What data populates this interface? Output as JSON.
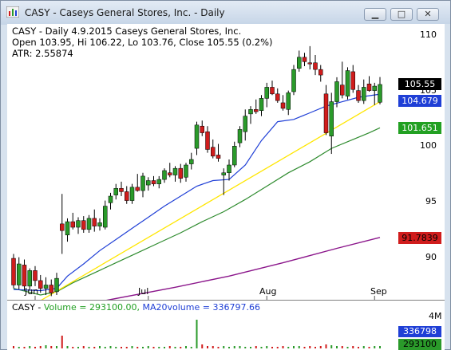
{
  "window": {
    "title": "CASY - Caseys General Stores, Inc. - Daily",
    "buttons": {
      "minimize": "▁",
      "maximize": "□",
      "close": "✕"
    }
  },
  "header": {
    "line1": "CASY - Daily 4.9.2015  Caseys General Stores, Inc.",
    "line2": "Open 103.95, Hi 106.22, Lo 103.76, Close 105.55 (0.2%)",
    "line3": " ATR: 2.55874"
  },
  "colors": {
    "up": "#2a9a2a",
    "down": "#d01c1c",
    "ma20": "#1f3fd6",
    "ma50": "#2e8b2e",
    "ma200": "#8b168b",
    "trend": "#ffe600"
  },
  "chart_data": {
    "type": "candlestick",
    "symbol": "CASY",
    "ylim": [
      86.1,
      111.0
    ],
    "y_ticks": [
      90,
      95,
      100,
      105,
      110
    ],
    "x_labels": [
      "Jun",
      "Jul",
      "Aug",
      "Sep"
    ],
    "candles": [
      {
        "o": 89.9,
        "h": 90.3,
        "l": 87.2,
        "c": 87.5
      },
      {
        "o": 87.5,
        "h": 90.0,
        "l": 87.1,
        "c": 89.4
      },
      {
        "o": 89.3,
        "h": 89.8,
        "l": 87.0,
        "c": 87.4
      },
      {
        "o": 87.4,
        "h": 89.0,
        "l": 87.0,
        "c": 88.8
      },
      {
        "o": 88.8,
        "h": 89.2,
        "l": 87.4,
        "c": 87.9
      },
      {
        "o": 87.9,
        "h": 88.4,
        "l": 86.8,
        "c": 87.2
      },
      {
        "o": 87.2,
        "h": 88.2,
        "l": 86.6,
        "c": 87.5
      },
      {
        "o": 87.5,
        "h": 88.0,
        "l": 86.5,
        "c": 86.8
      },
      {
        "o": 86.9,
        "h": 88.6,
        "l": 86.6,
        "c": 88.1
      },
      {
        "o": 93.0,
        "h": 95.7,
        "l": 90.3,
        "c": 92.4
      },
      {
        "o": 92.0,
        "h": 93.5,
        "l": 91.4,
        "c": 93.2
      },
      {
        "o": 93.2,
        "h": 94.0,
        "l": 92.5,
        "c": 92.7
      },
      {
        "o": 92.7,
        "h": 93.6,
        "l": 92.1,
        "c": 93.3
      },
      {
        "o": 93.3,
        "h": 93.7,
        "l": 92.2,
        "c": 92.5
      },
      {
        "o": 92.5,
        "h": 93.8,
        "l": 92.2,
        "c": 93.5
      },
      {
        "o": 93.5,
        "h": 94.3,
        "l": 92.3,
        "c": 92.8
      },
      {
        "o": 92.8,
        "h": 93.5,
        "l": 92.4,
        "c": 93.1
      },
      {
        "o": 92.7,
        "h": 95.1,
        "l": 92.5,
        "c": 94.6
      },
      {
        "o": 94.9,
        "h": 95.8,
        "l": 94.3,
        "c": 95.5
      },
      {
        "o": 95.6,
        "h": 96.6,
        "l": 95.2,
        "c": 96.2
      },
      {
        "o": 96.2,
        "h": 96.8,
        "l": 95.5,
        "c": 95.9
      },
      {
        "o": 95.9,
        "h": 96.4,
        "l": 94.8,
        "c": 95.1
      },
      {
        "o": 95.1,
        "h": 96.6,
        "l": 94.8,
        "c": 96.3
      },
      {
        "o": 96.3,
        "h": 97.5,
        "l": 95.9,
        "c": 96.0
      },
      {
        "o": 96.0,
        "h": 97.6,
        "l": 95.4,
        "c": 97.3
      },
      {
        "o": 96.5,
        "h": 97.2,
        "l": 96.0,
        "c": 96.9
      },
      {
        "o": 96.9,
        "h": 97.3,
        "l": 96.4,
        "c": 96.6
      },
      {
        "o": 96.6,
        "h": 97.3,
        "l": 96.2,
        "c": 97.0
      },
      {
        "o": 97.0,
        "h": 98.0,
        "l": 96.7,
        "c": 97.8
      },
      {
        "o": 97.6,
        "h": 98.5,
        "l": 97.2,
        "c": 97.4
      },
      {
        "o": 97.4,
        "h": 98.2,
        "l": 96.8,
        "c": 98.0
      },
      {
        "o": 98.0,
        "h": 98.4,
        "l": 96.7,
        "c": 97.1
      },
      {
        "o": 97.2,
        "h": 98.5,
        "l": 96.8,
        "c": 98.3
      },
      {
        "o": 98.4,
        "h": 99.4,
        "l": 97.9,
        "c": 98.8
      },
      {
        "o": 99.8,
        "h": 102.2,
        "l": 99.2,
        "c": 101.9
      },
      {
        "o": 101.8,
        "h": 102.3,
        "l": 100.9,
        "c": 101.2
      },
      {
        "o": 101.3,
        "h": 101.8,
        "l": 99.4,
        "c": 99.7
      },
      {
        "o": 99.9,
        "h": 100.6,
        "l": 98.9,
        "c": 99.1
      },
      {
        "o": 99.2,
        "h": 100.2,
        "l": 98.6,
        "c": 98.9
      },
      {
        "o": 97.4,
        "h": 98.0,
        "l": 95.6,
        "c": 97.6
      },
      {
        "o": 97.6,
        "h": 98.8,
        "l": 96.9,
        "c": 98.3
      },
      {
        "o": 98.3,
        "h": 100.4,
        "l": 98.1,
        "c": 100.0
      },
      {
        "o": 100.3,
        "h": 101.8,
        "l": 99.9,
        "c": 101.5
      },
      {
        "o": 101.3,
        "h": 103.3,
        "l": 100.5,
        "c": 102.7
      },
      {
        "o": 102.9,
        "h": 103.6,
        "l": 102.0,
        "c": 103.3
      },
      {
        "o": 103.3,
        "h": 104.2,
        "l": 102.9,
        "c": 103.1
      },
      {
        "o": 103.2,
        "h": 104.6,
        "l": 102.7,
        "c": 104.3
      },
      {
        "o": 104.3,
        "h": 105.7,
        "l": 103.5,
        "c": 105.3
      },
      {
        "o": 105.3,
        "h": 105.9,
        "l": 104.6,
        "c": 104.7
      },
      {
        "o": 104.7,
        "h": 105.2,
        "l": 103.9,
        "c": 104.1
      },
      {
        "o": 103.9,
        "h": 104.6,
        "l": 103.2,
        "c": 103.4
      },
      {
        "o": 103.3,
        "h": 105.0,
        "l": 102.8,
        "c": 104.8
      },
      {
        "o": 104.9,
        "h": 107.3,
        "l": 104.6,
        "c": 106.9
      },
      {
        "o": 107.0,
        "h": 108.6,
        "l": 106.7,
        "c": 108.0
      },
      {
        "o": 108.0,
        "h": 108.4,
        "l": 107.2,
        "c": 107.6
      },
      {
        "o": 107.5,
        "h": 109.0,
        "l": 106.9,
        "c": 107.4
      },
      {
        "o": 107.5,
        "h": 108.2,
        "l": 106.4,
        "c": 106.9
      },
      {
        "o": 106.9,
        "h": 107.3,
        "l": 105.8,
        "c": 106.4
      },
      {
        "o": 104.7,
        "h": 105.5,
        "l": 101.0,
        "c": 101.2
      },
      {
        "o": 100.9,
        "h": 104.8,
        "l": 99.3,
        "c": 104.0
      },
      {
        "o": 104.0,
        "h": 106.2,
        "l": 103.5,
        "c": 105.8
      },
      {
        "o": 105.5,
        "h": 107.6,
        "l": 104.3,
        "c": 104.6
      },
      {
        "o": 104.5,
        "h": 107.1,
        "l": 104.2,
        "c": 106.8
      },
      {
        "o": 106.7,
        "h": 107.3,
        "l": 104.8,
        "c": 105.1
      },
      {
        "o": 105.0,
        "h": 105.5,
        "l": 103.9,
        "c": 104.1
      },
      {
        "o": 104.1,
        "h": 106.0,
        "l": 103.8,
        "c": 105.3
      },
      {
        "o": 105.6,
        "h": 106.3,
        "l": 104.9,
        "c": 105.0
      },
      {
        "o": 105.0,
        "h": 105.7,
        "l": 103.7,
        "c": 105.4
      },
      {
        "o": 103.95,
        "h": 106.22,
        "l": 103.76,
        "c": 105.55
      }
    ],
    "lines": {
      "ma20": [
        [
          0,
          87.1
        ],
        [
          5,
          87.0
        ],
        [
          8,
          87.2
        ],
        [
          10,
          88.3
        ],
        [
          13,
          89.4
        ],
        [
          16,
          90.6
        ],
        [
          19,
          91.6
        ],
        [
          22,
          92.6
        ],
        [
          25,
          93.6
        ],
        [
          28,
          94.6
        ],
        [
          31,
          95.5
        ],
        [
          34,
          96.4
        ],
        [
          37,
          96.9
        ],
        [
          40,
          97.0
        ],
        [
          43,
          98.3
        ],
        [
          46,
          100.5
        ],
        [
          49,
          102.2
        ],
        [
          52,
          102.4
        ],
        [
          55,
          103.0
        ],
        [
          58,
          103.6
        ],
        [
          61,
          104.0
        ],
        [
          64,
          104.4
        ],
        [
          68,
          104.68
        ]
      ],
      "ma50": [
        [
          0,
          87.2
        ],
        [
          5,
          86.6
        ],
        [
          8,
          86.9
        ],
        [
          11,
          87.7
        ],
        [
          15,
          88.6
        ],
        [
          19,
          89.5
        ],
        [
          23,
          90.4
        ],
        [
          27,
          91.3
        ],
        [
          31,
          92.2
        ],
        [
          35,
          93.2
        ],
        [
          39,
          94.1
        ],
        [
          43,
          95.2
        ],
        [
          47,
          96.4
        ],
        [
          51,
          97.6
        ],
        [
          55,
          98.6
        ],
        [
          59,
          99.8
        ],
        [
          63,
          100.6
        ],
        [
          66,
          101.2
        ],
        [
          68,
          101.65
        ]
      ],
      "trend": [
        [
          5,
          86.1
        ],
        [
          68,
          104.0
        ]
      ],
      "ma200": [
        [
          17,
          86.1
        ],
        [
          30,
          87.3
        ],
        [
          40,
          88.3
        ],
        [
          50,
          89.5
        ],
        [
          60,
          90.8
        ],
        [
          68,
          91.78
        ]
      ]
    },
    "badges": {
      "close": "105.55",
      "ma20": "104.679",
      "ma50": "101.651",
      "ma200": "91.7839"
    },
    "volume": {
      "legend_symbol": "CASY - ",
      "legend_volume": "Volume = 293100.00, ",
      "legend_ma": "MA20volume = 336797.66",
      "axis_label": "4M",
      "badge_ma": "336798",
      "badge_vol": "293100"
    }
  }
}
